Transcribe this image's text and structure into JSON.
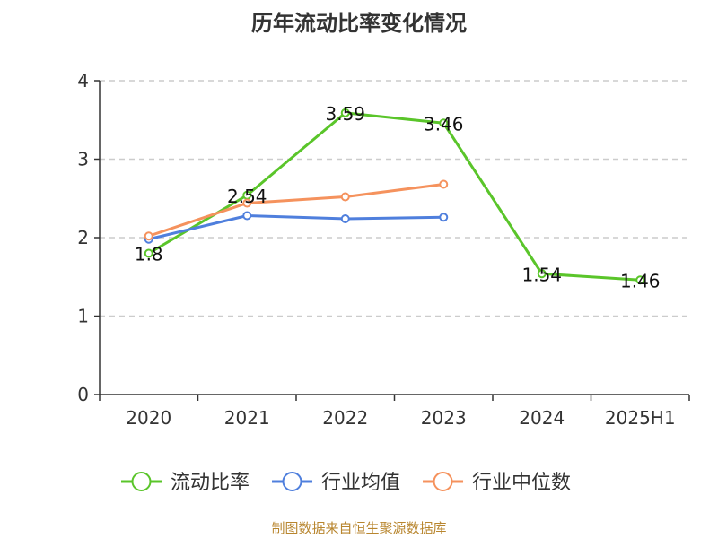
{
  "chart_data": {
    "type": "line",
    "title": "历年流动比率变化情况",
    "categories": [
      "2020",
      "2021",
      "2022",
      "2023",
      "2024",
      "2025H1"
    ],
    "ylim": [
      0,
      4
    ],
    "yticks": [
      0,
      1,
      2,
      3,
      4
    ],
    "grid": true,
    "legend_position": "bottom",
    "series": [
      {
        "name": "流动比率",
        "color": "#5ac52a",
        "values": [
          1.8,
          2.54,
          3.59,
          3.46,
          1.54,
          1.46
        ],
        "labels": [
          "1.8",
          "2.54",
          "3.59",
          "3.46",
          "1.54",
          "1.46"
        ]
      },
      {
        "name": "行业均值",
        "color": "#4f7fdd",
        "values": [
          1.98,
          2.28,
          2.24,
          2.26,
          null,
          null
        ]
      },
      {
        "name": "行业中位数",
        "color": "#f5925d",
        "values": [
          2.02,
          2.44,
          2.52,
          2.68,
          null,
          null
        ]
      }
    ]
  },
  "source_text": "制图数据来自恒生聚源数据库"
}
